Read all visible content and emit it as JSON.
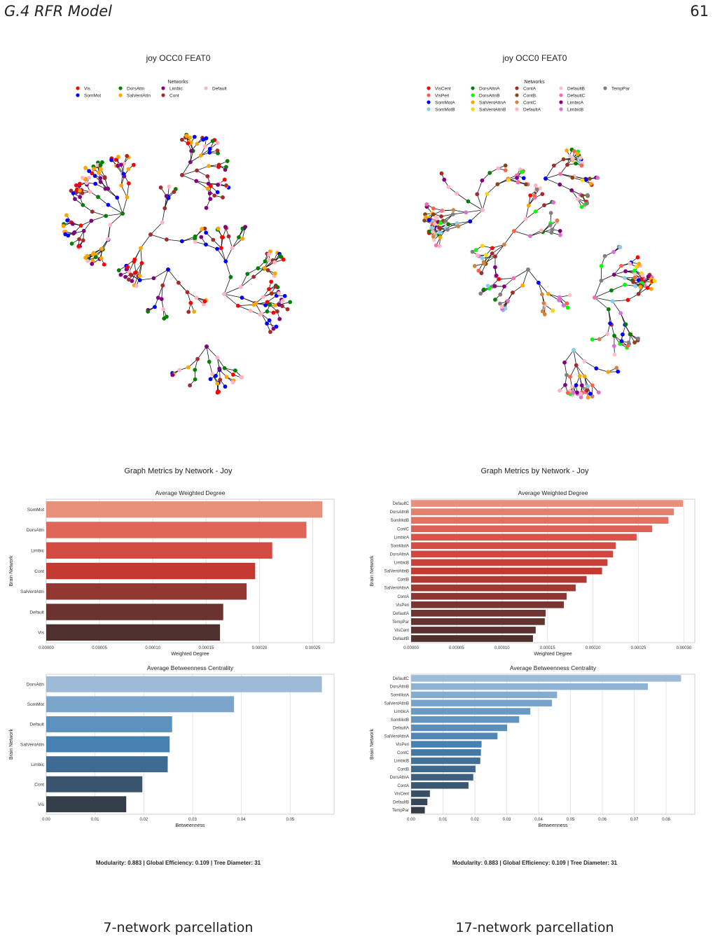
{
  "page": {
    "section": "G.4   RFR Model",
    "number": "61"
  },
  "panels": [
    {
      "tree_title": "joy OCC0 FEAT0",
      "legend": {
        "title": "Networks",
        "items": [
          {
            "label": "Vis",
            "color": "#ff0000"
          },
          {
            "label": "SomMot",
            "color": "#0000ff"
          },
          {
            "label": "DorsAttn",
            "color": "#008000"
          },
          {
            "label": "SalVentAttn",
            "color": "#ffa500"
          },
          {
            "label": "Limbic",
            "color": "#800080"
          },
          {
            "label": "Cont",
            "color": "#a52a2a"
          },
          {
            "label": "Default",
            "color": "#ffb6c1"
          }
        ]
      },
      "metrics_title": "Graph Metrics by Network - Joy",
      "summary": "Modularity: 0.883    |    Global Efficiency: 0.109    |    Tree Diameter: 31",
      "caption": "7-network parcellation"
    },
    {
      "tree_title": "joy OCC0 FEAT0",
      "legend": {
        "title": "Networks",
        "items": [
          {
            "label": "VisCent",
            "color": "#ff0000"
          },
          {
            "label": "VisPeri",
            "color": "#ff6347"
          },
          {
            "label": "SomMotA",
            "color": "#0000ff"
          },
          {
            "label": "SomMotB",
            "color": "#87ceeb"
          },
          {
            "label": "DorsAttnA",
            "color": "#008000"
          },
          {
            "label": "DorsAttnB",
            "color": "#00ff00"
          },
          {
            "label": "SalVentAttnA",
            "color": "#ffa500"
          },
          {
            "label": "SalVentAttnB",
            "color": "#ffd700"
          },
          {
            "label": "ContA",
            "color": "#a52a2a"
          },
          {
            "label": "ContB",
            "color": "#8b4513"
          },
          {
            "label": "ContC",
            "color": "#cd853f"
          },
          {
            "label": "DefaultA",
            "color": "#ffb6c1"
          },
          {
            "label": "DefaultB",
            "color": "#ffc0cb"
          },
          {
            "label": "DefaultC",
            "color": "#ff69b4"
          },
          {
            "label": "LimbicA",
            "color": "#800080"
          },
          {
            "label": "LimbicB",
            "color": "#da70d6"
          },
          {
            "label": "TempPar",
            "color": "#808080"
          }
        ]
      },
      "metrics_title": "Graph Metrics by Network - Joy",
      "summary": "Modularity: 0.883    |    Global Efficiency: 0.109    |    Tree Diameter: 31",
      "caption": "17-network parcellation"
    }
  ],
  "chart_data": [
    {
      "type": "bar",
      "orientation": "horizontal",
      "title": "Average Weighted Degree",
      "xlabel": "Weighted Degree",
      "ylabel": "Brain Network",
      "categories": [
        "SomMot",
        "DorsAttn",
        "Limbic",
        "Cont",
        "SalVentAttn",
        "Default",
        "Vis"
      ],
      "values": [
        0.000259,
        0.000244,
        0.000212,
        0.000196,
        0.000188,
        0.000166,
        0.000163
      ],
      "xlim": [
        0,
        0.00027
      ],
      "xticks": [
        "0.00000",
        "0.00005",
        "0.00010",
        "0.00015",
        "0.00020",
        "0.00025"
      ],
      "xtick_values": [
        0,
        5e-05,
        0.0001,
        0.00015,
        0.0002,
        0.00025
      ],
      "palette": "reds",
      "grid": true
    },
    {
      "type": "bar",
      "orientation": "horizontal",
      "title": "Average Betweenness Centrality",
      "xlabel": "Betweenness",
      "ylabel": "Brain Network",
      "categories": [
        "DorsAttn",
        "SomMot",
        "Default",
        "SalVentAttn",
        "Limbic",
        "Cont",
        "Vis"
      ],
      "values": [
        0.0565,
        0.0385,
        0.0258,
        0.0253,
        0.0249,
        0.0197,
        0.0164
      ],
      "xlim": [
        0,
        0.059
      ],
      "xticks": [
        "0.00",
        "0.01",
        "0.02",
        "0.03",
        "0.04",
        "0.05"
      ],
      "xtick_values": [
        0,
        0.01,
        0.02,
        0.03,
        0.04,
        0.05
      ],
      "palette": "blues",
      "grid": true
    },
    {
      "type": "bar",
      "orientation": "horizontal",
      "title": "Average Weighted Degree",
      "xlabel": "Weighted Degree",
      "ylabel": "Brain Network",
      "categories": [
        "DefaultC",
        "DorsAttnB",
        "SomMotB",
        "ContC",
        "LimbicA",
        "SomMotA",
        "DorsAttnA",
        "LimbicB",
        "SalVentAttnB",
        "ContB",
        "SalVentAttnA",
        "ContA",
        "VisPeri",
        "DefaultA",
        "TempPar",
        "VisCent",
        "DefaultB"
      ],
      "values": [
        0.000299,
        0.000289,
        0.000283,
        0.000265,
        0.000248,
        0.000225,
        0.000222,
        0.000216,
        0.00021,
        0.000193,
        0.000181,
        0.000171,
        0.000168,
        0.000148,
        0.000147,
        0.000137,
        0.000134
      ],
      "xlim": [
        0,
        0.000312
      ],
      "xticks": [
        "0.00000",
        "0.00005",
        "0.00010",
        "0.00015",
        "0.00020",
        "0.00025",
        "0.00030"
      ],
      "xtick_values": [
        0,
        5e-05,
        0.0001,
        0.00015,
        0.0002,
        0.00025,
        0.0003
      ],
      "palette": "reds",
      "grid": true
    },
    {
      "type": "bar",
      "orientation": "horizontal",
      "title": "Average Betweenness Centrality",
      "xlabel": "Betweenness",
      "ylabel": "Brain Network",
      "categories": [
        "DefaultC",
        "DorsAttnB",
        "SomMotA",
        "SalVentAttnB",
        "LimbicA",
        "SomMotB",
        "DefaultA",
        "SalVentAttnA",
        "VisPeri",
        "ContC",
        "LimbicB",
        "ContB",
        "DorsAttnA",
        "ContA",
        "VisCent",
        "DefaultB",
        "TempPar"
      ],
      "values": [
        0.0847,
        0.0743,
        0.0458,
        0.0442,
        0.0374,
        0.0339,
        0.0301,
        0.0271,
        0.0221,
        0.0219,
        0.0217,
        0.0202,
        0.0195,
        0.018,
        0.0059,
        0.0051,
        0.0043
      ],
      "xlim": [
        0,
        0.089
      ],
      "xticks": [
        "0.00",
        "0.01",
        "0.02",
        "0.03",
        "0.04",
        "0.05",
        "0.06",
        "0.07",
        "0.08"
      ],
      "xtick_values": [
        0,
        0.01,
        0.02,
        0.03,
        0.04,
        0.05,
        0.06,
        0.07,
        0.08
      ],
      "palette": "blues",
      "grid": true
    }
  ]
}
